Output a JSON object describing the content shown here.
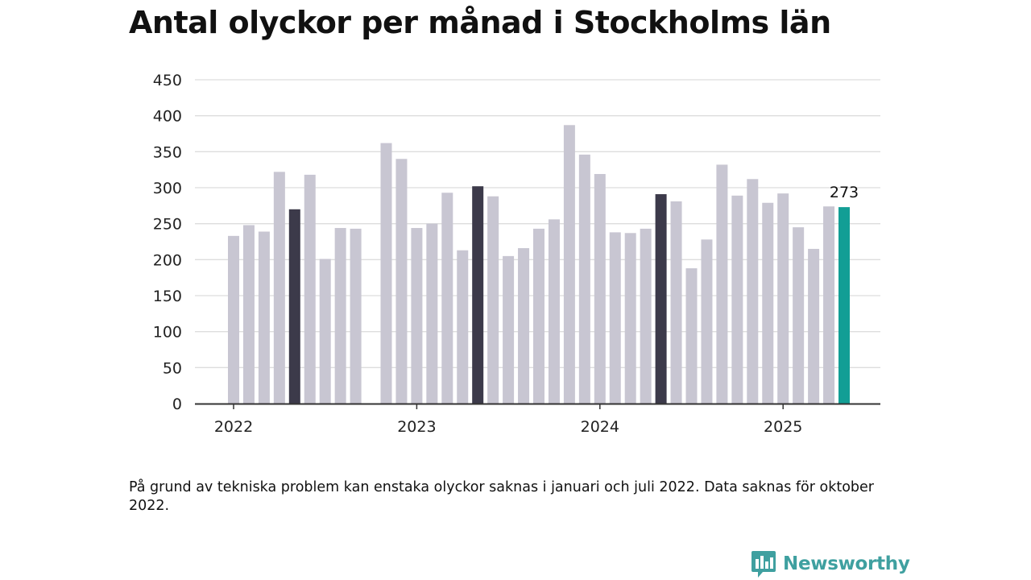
{
  "title": "Antal olyckor per månad i Stockholms län",
  "note": "På grund av tekniska problem kan enstaka olyckor saknas i januari och juli 2022. Data saknas för oktober 2022.",
  "brand": {
    "name": "Newsworthy",
    "logo_icon": "bar-chart-speech-bubble-icon"
  },
  "colors": {
    "default": "#c8c6d2",
    "highlight": "#3c3a4a",
    "current": "#129e95",
    "grid": "#dddddd",
    "axis": "#333333"
  },
  "chart_data": {
    "type": "bar",
    "title": "Antal olyckor per månad i Stockholms län",
    "xlabel": "",
    "ylabel": "",
    "ylim": [
      0,
      450
    ],
    "yticks": [
      0,
      50,
      100,
      150,
      200,
      250,
      300,
      350,
      400,
      450
    ],
    "grid": true,
    "xtick_labels": [
      {
        "label": "2022",
        "index": 0
      },
      {
        "label": "2023",
        "index": 12
      },
      {
        "label": "2024",
        "index": 24
      },
      {
        "label": "2025",
        "index": 36
      }
    ],
    "categories": [
      "2022-01",
      "2022-02",
      "2022-03",
      "2022-04",
      "2022-05",
      "2022-06",
      "2022-07",
      "2022-08",
      "2022-09",
      "2022-10",
      "2022-11",
      "2022-12",
      "2023-01",
      "2023-02",
      "2023-03",
      "2023-04",
      "2023-05",
      "2023-06",
      "2023-07",
      "2023-08",
      "2023-09",
      "2023-10",
      "2023-11",
      "2023-12",
      "2024-01",
      "2024-02",
      "2024-03",
      "2024-04",
      "2024-05",
      "2024-06",
      "2024-07",
      "2024-08",
      "2024-09",
      "2024-10",
      "2024-11",
      "2024-12",
      "2025-01",
      "2025-02",
      "2025-03",
      "2025-04",
      "2025-05"
    ],
    "values": [
      233,
      248,
      239,
      322,
      270,
      318,
      201,
      244,
      243,
      null,
      362,
      340,
      244,
      250,
      293,
      213,
      302,
      288,
      205,
      216,
      243,
      256,
      387,
      346,
      319,
      238,
      237,
      243,
      291,
      281,
      188,
      228,
      332,
      289,
      312,
      279,
      292,
      245,
      215,
      274,
      273
    ],
    "highlight_indices": [
      4,
      16,
      28
    ],
    "current_index": 40,
    "data_labels": [
      {
        "index": 40,
        "text": "273"
      }
    ]
  }
}
